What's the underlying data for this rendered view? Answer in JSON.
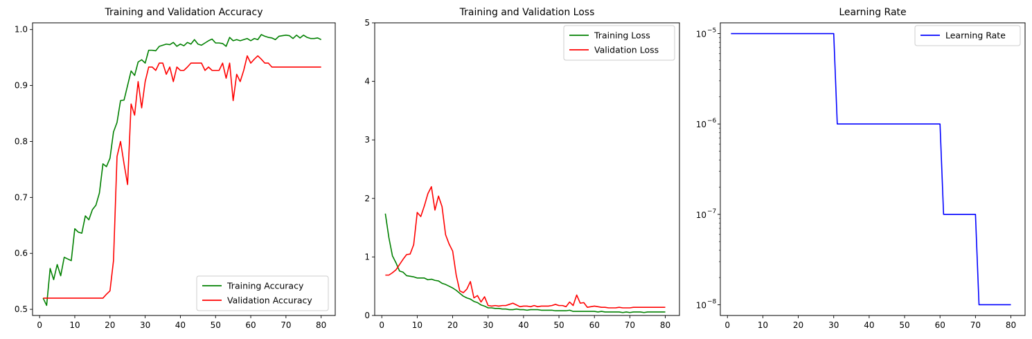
{
  "colors": {
    "training": "#008000",
    "validation": "#ff0000",
    "learning_rate": "#0000ff"
  },
  "chart_data": [
    {
      "type": "line",
      "title": "Training and Validation Accuracy",
      "xlabel": "",
      "ylabel": "",
      "xlim": [
        -2,
        84
      ],
      "ylim": [
        0.489,
        1.012
      ],
      "xticks": [
        0,
        10,
        20,
        30,
        40,
        50,
        60,
        70,
        80
      ],
      "yticks": [
        0.5,
        0.6,
        0.7,
        0.8,
        0.9,
        1.0
      ],
      "ytick_labels": [
        "0.5",
        "0.6",
        "0.7",
        "0.8",
        "0.9",
        "1.0"
      ],
      "grid": false,
      "legend_position": "lower-right",
      "series": [
        {
          "name": "Training Accuracy",
          "color": "#008000",
          "x": [
            1,
            2,
            3,
            4,
            5,
            6,
            7,
            8,
            9,
            10,
            11,
            12,
            13,
            14,
            15,
            16,
            17,
            18,
            19,
            20,
            21,
            22,
            23,
            24,
            25,
            26,
            27,
            28,
            29,
            30,
            31,
            32,
            33,
            34,
            35,
            36,
            37,
            38,
            39,
            40,
            41,
            42,
            43,
            44,
            45,
            46,
            47,
            48,
            49,
            50,
            51,
            52,
            53,
            54,
            55,
            56,
            57,
            58,
            59,
            60,
            61,
            62,
            63,
            64,
            65,
            66,
            67,
            68,
            69,
            70,
            71,
            72,
            73,
            74,
            75,
            76,
            77,
            78,
            79,
            80
          ],
          "y": [
            0.52,
            0.507,
            0.573,
            0.553,
            0.58,
            0.56,
            0.593,
            0.59,
            0.587,
            0.644,
            0.638,
            0.636,
            0.667,
            0.66,
            0.678,
            0.686,
            0.708,
            0.76,
            0.755,
            0.77,
            0.817,
            0.834,
            0.873,
            0.874,
            0.9,
            0.926,
            0.918,
            0.942,
            0.946,
            0.94,
            0.963,
            0.963,
            0.962,
            0.97,
            0.972,
            0.974,
            0.973,
            0.977,
            0.97,
            0.974,
            0.971,
            0.977,
            0.974,
            0.982,
            0.974,
            0.972,
            0.976,
            0.98,
            0.983,
            0.976,
            0.976,
            0.975,
            0.97,
            0.986,
            0.98,
            0.982,
            0.98,
            0.982,
            0.984,
            0.98,
            0.984,
            0.982,
            0.991,
            0.988,
            0.986,
            0.985,
            0.982,
            0.988,
            0.989,
            0.99,
            0.989,
            0.984,
            0.99,
            0.985,
            0.99,
            0.986,
            0.984,
            0.984,
            0.985,
            0.982
          ]
        },
        {
          "name": "Validation Accuracy",
          "color": "#ff0000",
          "x": [
            1,
            2,
            3,
            4,
            5,
            6,
            7,
            8,
            9,
            10,
            11,
            12,
            13,
            14,
            15,
            16,
            17,
            18,
            19,
            20,
            21,
            22,
            23,
            24,
            25,
            26,
            27,
            28,
            29,
            30,
            31,
            32,
            33,
            34,
            35,
            36,
            37,
            38,
            39,
            40,
            41,
            42,
            43,
            44,
            45,
            46,
            47,
            48,
            49,
            50,
            51,
            52,
            53,
            54,
            55,
            56,
            57,
            58,
            59,
            60,
            61,
            62,
            63,
            64,
            65,
            66,
            67,
            68,
            69,
            70,
            71,
            72,
            73,
            74,
            75,
            76,
            77,
            78,
            79,
            80
          ],
          "y": [
            0.52,
            0.52,
            0.52,
            0.52,
            0.52,
            0.52,
            0.52,
            0.52,
            0.52,
            0.52,
            0.52,
            0.52,
            0.52,
            0.52,
            0.52,
            0.52,
            0.52,
            0.52,
            0.527,
            0.533,
            0.587,
            0.773,
            0.8,
            0.76,
            0.723,
            0.867,
            0.847,
            0.907,
            0.86,
            0.907,
            0.933,
            0.933,
            0.927,
            0.94,
            0.94,
            0.92,
            0.933,
            0.907,
            0.933,
            0.927,
            0.927,
            0.933,
            0.94,
            0.94,
            0.94,
            0.94,
            0.927,
            0.933,
            0.927,
            0.927,
            0.927,
            0.94,
            0.913,
            0.94,
            0.873,
            0.92,
            0.907,
            0.927,
            0.953,
            0.94,
            0.947,
            0.953,
            0.947,
            0.94,
            0.94,
            0.933,
            0.933,
            0.933,
            0.933,
            0.933,
            0.933,
            0.933,
            0.933,
            0.933,
            0.933,
            0.933,
            0.933,
            0.933,
            0.933,
            0.933
          ]
        }
      ]
    },
    {
      "type": "line",
      "title": "Training and Validation Loss",
      "xlabel": "",
      "ylabel": "",
      "xlim": [
        -2,
        84
      ],
      "ylim": [
        0,
        5
      ],
      "xticks": [
        0,
        10,
        20,
        30,
        40,
        50,
        60,
        70,
        80
      ],
      "yticks": [
        0,
        1,
        2,
        3,
        4,
        5
      ],
      "ytick_labels": [
        "0",
        "1",
        "2",
        "3",
        "4",
        "5"
      ],
      "grid": false,
      "legend_position": "upper-right",
      "series": [
        {
          "name": "Training Loss",
          "color": "#008000",
          "x": [
            1,
            2,
            3,
            4,
            5,
            6,
            7,
            8,
            9,
            10,
            11,
            12,
            13,
            14,
            15,
            16,
            17,
            18,
            19,
            20,
            21,
            22,
            23,
            24,
            25,
            26,
            27,
            28,
            29,
            30,
            31,
            32,
            33,
            34,
            35,
            36,
            37,
            38,
            39,
            40,
            41,
            42,
            43,
            44,
            45,
            46,
            47,
            48,
            49,
            50,
            51,
            52,
            53,
            54,
            55,
            56,
            57,
            58,
            59,
            60,
            61,
            62,
            63,
            64,
            65,
            66,
            67,
            68,
            69,
            70,
            71,
            72,
            73,
            74,
            75,
            76,
            77,
            78,
            79,
            80
          ],
          "y": [
            1.74,
            1.33,
            1.02,
            0.9,
            0.76,
            0.74,
            0.68,
            0.67,
            0.66,
            0.64,
            0.64,
            0.64,
            0.61,
            0.62,
            0.6,
            0.59,
            0.55,
            0.53,
            0.5,
            0.47,
            0.43,
            0.38,
            0.33,
            0.3,
            0.28,
            0.24,
            0.22,
            0.18,
            0.16,
            0.13,
            0.13,
            0.12,
            0.12,
            0.11,
            0.11,
            0.1,
            0.1,
            0.11,
            0.1,
            0.1,
            0.09,
            0.1,
            0.1,
            0.1,
            0.09,
            0.09,
            0.09,
            0.09,
            0.08,
            0.08,
            0.08,
            0.08,
            0.09,
            0.07,
            0.07,
            0.07,
            0.07,
            0.07,
            0.07,
            0.07,
            0.06,
            0.07,
            0.06,
            0.06,
            0.06,
            0.06,
            0.06,
            0.05,
            0.06,
            0.05,
            0.06,
            0.06,
            0.06,
            0.05,
            0.06,
            0.06,
            0.06,
            0.06,
            0.06,
            0.06
          ]
        },
        {
          "name": "Validation Loss",
          "color": "#ff0000",
          "x": [
            1,
            2,
            3,
            4,
            5,
            6,
            7,
            8,
            9,
            10,
            11,
            12,
            13,
            14,
            15,
            16,
            17,
            18,
            19,
            20,
            21,
            22,
            23,
            24,
            25,
            26,
            27,
            28,
            29,
            30,
            31,
            32,
            33,
            34,
            35,
            36,
            37,
            38,
            39,
            40,
            41,
            42,
            43,
            44,
            45,
            46,
            47,
            48,
            49,
            50,
            51,
            52,
            53,
            54,
            55,
            56,
            57,
            58,
            59,
            60,
            61,
            62,
            63,
            64,
            65,
            66,
            67,
            68,
            69,
            70,
            71,
            72,
            73,
            74,
            75,
            76,
            77,
            78,
            79,
            80
          ],
          "y": [
            0.69,
            0.69,
            0.73,
            0.78,
            0.87,
            0.96,
            1.04,
            1.05,
            1.21,
            1.76,
            1.69,
            1.87,
            2.08,
            2.2,
            1.8,
            2.04,
            1.86,
            1.38,
            1.22,
            1.1,
            0.69,
            0.42,
            0.39,
            0.45,
            0.58,
            0.3,
            0.34,
            0.23,
            0.32,
            0.17,
            0.16,
            0.17,
            0.16,
            0.17,
            0.17,
            0.19,
            0.21,
            0.18,
            0.15,
            0.16,
            0.16,
            0.15,
            0.17,
            0.15,
            0.16,
            0.16,
            0.16,
            0.17,
            0.19,
            0.17,
            0.17,
            0.15,
            0.23,
            0.17,
            0.35,
            0.21,
            0.22,
            0.14,
            0.15,
            0.16,
            0.15,
            0.14,
            0.14,
            0.13,
            0.13,
            0.13,
            0.14,
            0.13,
            0.13,
            0.13,
            0.14,
            0.14,
            0.14,
            0.14,
            0.14,
            0.14,
            0.14,
            0.14,
            0.14,
            0.14
          ]
        }
      ]
    },
    {
      "type": "line",
      "title": "Learning Rate",
      "xlabel": "",
      "ylabel": "",
      "xlim": [
        -2,
        84
      ],
      "ylim_log10": [
        -8.119,
        -4.881
      ],
      "yscale": "log",
      "xticks": [
        0,
        10,
        20,
        30,
        40,
        50,
        60,
        70,
        80
      ],
      "yticks_log10": [
        -5,
        -6,
        -7,
        -8
      ],
      "ytick_labels": [
        "10",
        "10",
        "10",
        "10"
      ],
      "ytick_exponents": [
        "−5",
        "−6",
        "−7",
        "−8"
      ],
      "grid": false,
      "legend_position": "upper-right",
      "series": [
        {
          "name": "Learning Rate",
          "color": "#0000ff",
          "x": [
            1,
            30,
            31,
            60,
            61,
            70,
            71,
            80
          ],
          "y": [
            1e-05,
            1e-05,
            1e-06,
            1e-06,
            1e-07,
            1e-07,
            1e-08,
            1e-08
          ]
        }
      ]
    }
  ]
}
